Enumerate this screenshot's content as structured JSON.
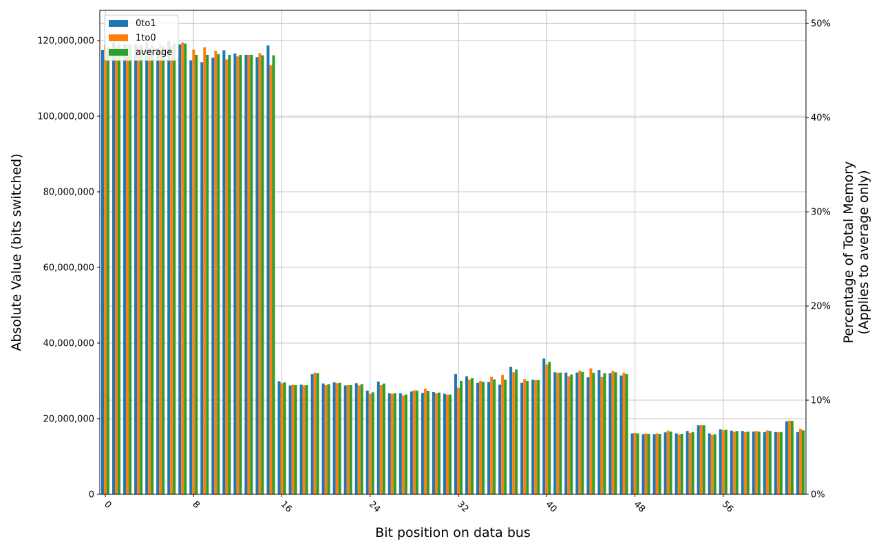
{
  "chart_data": {
    "type": "bar",
    "title": "",
    "xlabel": "Bit position on data bus",
    "ylabel": "Absolute Value (bits switched)",
    "y2label_lines": [
      "Percentage of Total Memory",
      "(Applies to average only)"
    ],
    "ylim": [
      0,
      128000000
    ],
    "y2lim": [
      0,
      0.514
    ],
    "yticks": [
      0,
      20000000,
      40000000,
      60000000,
      80000000,
      100000000,
      120000000
    ],
    "ytick_labels": [
      "0",
      "20,000,000",
      "40,000,000",
      "60,000,000",
      "80,000,000",
      "100,000,000",
      "120,000,000"
    ],
    "y2ticks": [
      0,
      0.1,
      0.2,
      0.3,
      0.4,
      0.5
    ],
    "y2tick_labels": [
      "0%",
      "10%",
      "20%",
      "30%",
      "40%",
      "50%"
    ],
    "xticks": [
      0,
      8,
      16,
      24,
      32,
      40,
      48,
      56
    ],
    "xtick_labels": [
      "0",
      "8",
      "16",
      "24",
      "32",
      "40",
      "48",
      "56"
    ],
    "grid": true,
    "legend_position": "top-left",
    "categories": [
      0,
      1,
      2,
      3,
      4,
      5,
      6,
      7,
      8,
      9,
      10,
      11,
      12,
      13,
      14,
      15,
      16,
      17,
      18,
      19,
      20,
      21,
      22,
      23,
      24,
      25,
      26,
      27,
      28,
      29,
      30,
      31,
      32,
      33,
      34,
      35,
      36,
      37,
      38,
      39,
      40,
      41,
      42,
      43,
      44,
      45,
      46,
      47,
      48,
      49,
      50,
      51,
      52,
      53,
      54,
      55,
      56,
      57,
      58,
      59,
      60,
      61,
      62,
      63
    ],
    "series": [
      {
        "name": "0to1",
        "color": "#1f77b4",
        "values": [
          117500000,
          119500000,
          119000000,
          119000000,
          119500000,
          118000000,
          120000000,
          119000000,
          114800000,
          114300000,
          115500000,
          117400000,
          116600000,
          116200000,
          115600000,
          118700000,
          29900000,
          28800000,
          29000000,
          31800000,
          29300000,
          29600000,
          28800000,
          29400000,
          27400000,
          29800000,
          26700000,
          26700000,
          27200000,
          26800000,
          27100000,
          26600000,
          31800000,
          31200000,
          29500000,
          29700000,
          29000000,
          33700000,
          29500000,
          30300000,
          35900000,
          32300000,
          32200000,
          32200000,
          31000000,
          32900000,
          32000000,
          31400000,
          16100000,
          15900000,
          15900000,
          16400000,
          16100000,
          16700000,
          18300000,
          16100000,
          17200000,
          16800000,
          16700000,
          16600000,
          16500000,
          16500000,
          19300000,
          16500000
        ]
      },
      {
        "name": "1to0",
        "color": "#ff7f0e",
        "values": [
          119000000,
          118500000,
          119000000,
          118500000,
          118000000,
          119000000,
          118500000,
          119500000,
          117600000,
          118200000,
          117300000,
          115000000,
          115800000,
          116200000,
          116700000,
          113500000,
          29400000,
          29000000,
          28800000,
          32200000,
          28900000,
          29400000,
          28900000,
          28800000,
          26600000,
          28900000,
          26600000,
          26100000,
          27500000,
          27900000,
          26700000,
          26300000,
          28200000,
          30300000,
          30000000,
          31100000,
          31600000,
          32300000,
          30500000,
          30200000,
          34300000,
          32100000,
          31200000,
          32700000,
          33300000,
          31100000,
          32600000,
          32200000,
          16200000,
          16100000,
          16100000,
          16800000,
          15800000,
          16200000,
          18300000,
          15700000,
          17000000,
          16600000,
          16500000,
          16700000,
          16900000,
          16500000,
          19500000,
          17300000
        ]
      },
      {
        "name": "average",
        "color": "#2ca02c",
        "values": [
          118200000,
          119000000,
          119000000,
          118800000,
          118700000,
          118500000,
          119200000,
          119200000,
          116200000,
          116200000,
          116400000,
          116200000,
          116200000,
          116200000,
          116100000,
          116100000,
          29600000,
          28900000,
          28900000,
          32000000,
          29100000,
          29500000,
          28900000,
          29100000,
          27000000,
          29300000,
          26700000,
          26400000,
          27400000,
          27300000,
          26900000,
          26400000,
          30000000,
          30700000,
          29700000,
          30400000,
          30300000,
          33000000,
          30000000,
          30200000,
          35000000,
          32200000,
          31700000,
          32400000,
          32100000,
          32000000,
          32300000,
          31800000,
          16100000,
          16000000,
          16000000,
          16600000,
          16000000,
          16500000,
          18300000,
          15900000,
          17100000,
          16700000,
          16600000,
          16600000,
          16700000,
          16500000,
          19400000,
          16900000
        ]
      }
    ]
  }
}
